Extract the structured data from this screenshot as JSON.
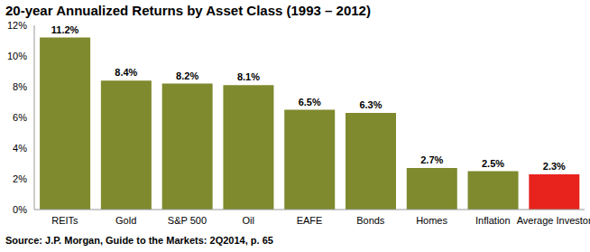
{
  "chart_data": {
    "type": "bar",
    "title": "20-year Annualized Returns by Asset Class (1993 – 2012)",
    "categories": [
      "REITs",
      "Gold",
      "S&P 500",
      "Oil",
      "EAFE",
      "Bonds",
      "Homes",
      "Inflation",
      "Average Investor"
    ],
    "values": [
      11.2,
      8.4,
      8.2,
      8.1,
      6.5,
      6.3,
      2.7,
      2.5,
      2.3
    ],
    "value_labels": [
      "11.2%",
      "8.4%",
      "8.2%",
      "8.1%",
      "6.5%",
      "6.3%",
      "2.7%",
      "2.5%",
      "2.3%"
    ],
    "data_labels": true,
    "colors": [
      "#7f8a2e",
      "#7f8a2e",
      "#7f8a2e",
      "#7f8a2e",
      "#7f8a2e",
      "#7f8a2e",
      "#7f8a2e",
      "#7f8a2e",
      "#e8231e"
    ],
    "ylim": [
      0,
      12
    ],
    "yticks": [
      {
        "value": 0,
        "label": "0%"
      },
      {
        "value": 2,
        "label": "2%"
      },
      {
        "value": 4,
        "label": "4%"
      },
      {
        "value": 6,
        "label": "6%"
      },
      {
        "value": 8,
        "label": "8%"
      },
      {
        "value": 10,
        "label": "10%"
      },
      {
        "value": 12,
        "label": "12%"
      }
    ],
    "grid": false,
    "source": "Source: J.P. Morgan, Guide to the Markets: 2Q2014, p. 65"
  }
}
